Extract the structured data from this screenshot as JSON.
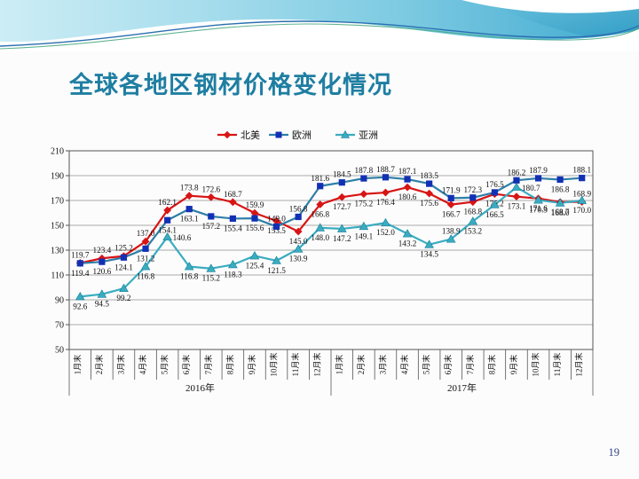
{
  "slide": {
    "page_number": "19"
  },
  "title": "全球各地区钢材价格变化情况",
  "colors": {
    "title": "#1E7EA1",
    "page_number": "#31417E",
    "grid": "#8f8f8f",
    "axis": "#555555",
    "data_label": "#1a1a1a",
    "north_america": "#D81414",
    "europe_line": "#2E7EA6",
    "europe_marker": "#1230B4",
    "asia": "#3AACC0"
  },
  "chart_data": {
    "type": "line",
    "grid": true,
    "legend_position": "top-center",
    "months": [
      "1月末",
      "2月末",
      "3月末",
      "4月末",
      "5月末",
      "6月末",
      "7月末",
      "8月末",
      "9月末",
      "10月末",
      "11月末",
      "12月末"
    ],
    "years": [
      "2016年",
      "2017年"
    ],
    "y_axis": {
      "min": 50,
      "max": 210,
      "step": 20
    },
    "series": [
      {
        "name": "北美",
        "marker": "diamond",
        "color": "#D81414",
        "marker_color": "#D81414",
        "values": [
          119.7,
          123.4,
          125.2,
          137.0,
          162.1,
          173.8,
          172.6,
          168.7,
          159.9,
          153.5,
          145.0,
          166.8,
          172.7,
          175.2,
          176.4,
          180.6,
          175.6,
          166.7,
          168.8,
          175.2,
          173.1,
          171.6,
          168.7,
          168.9
        ],
        "label_pos": [
          "above",
          "above",
          "above",
          "above",
          "above",
          "above",
          "above",
          "above",
          "above",
          "below",
          "below",
          "below",
          "below",
          "below",
          "below",
          "below",
          "below",
          "below",
          "below",
          "below",
          "below",
          "below",
          "below",
          "above"
        ]
      },
      {
        "name": "欧洲",
        "marker": "square",
        "color": "#2E7EA6",
        "marker_color": "#1230B4",
        "values": [
          119.4,
          120.6,
          124.1,
          131.2,
          154.1,
          163.1,
          157.2,
          155.4,
          155.6,
          149.0,
          156.8,
          181.6,
          184.5,
          187.8,
          188.7,
          187.1,
          183.5,
          171.9,
          172.3,
          176.5,
          186.2,
          187.9,
          186.8,
          188.1
        ],
        "label_pos": [
          "below",
          "below",
          "below",
          "below",
          "below",
          "below",
          "below",
          "below",
          "below",
          "above",
          "above",
          "above",
          "above",
          "above",
          "above",
          "above",
          "above",
          "above",
          "above",
          "above",
          "above",
          "above",
          "below",
          "above"
        ]
      },
      {
        "name": "亚洲",
        "marker": "triangle",
        "color": "#3AACC0",
        "marker_color": "#3AACC0",
        "values": [
          92.6,
          94.5,
          99.2,
          116.8,
          140.6,
          116.8,
          115.2,
          118.3,
          125.4,
          121.5,
          130.9,
          148.0,
          147.2,
          149.1,
          152.0,
          143.2,
          134.5,
          138.9,
          153.2,
          166.5,
          180.7,
          170.3,
          168.0,
          170.0
        ],
        "label_pos": [
          "below",
          "below",
          "below",
          "below",
          "right",
          "below",
          "below",
          "below",
          "below",
          "below",
          "below",
          "below",
          "below",
          "below",
          "below",
          "below",
          "below",
          "above",
          "below",
          "below",
          "right",
          "below",
          "below",
          "below"
        ]
      }
    ]
  }
}
